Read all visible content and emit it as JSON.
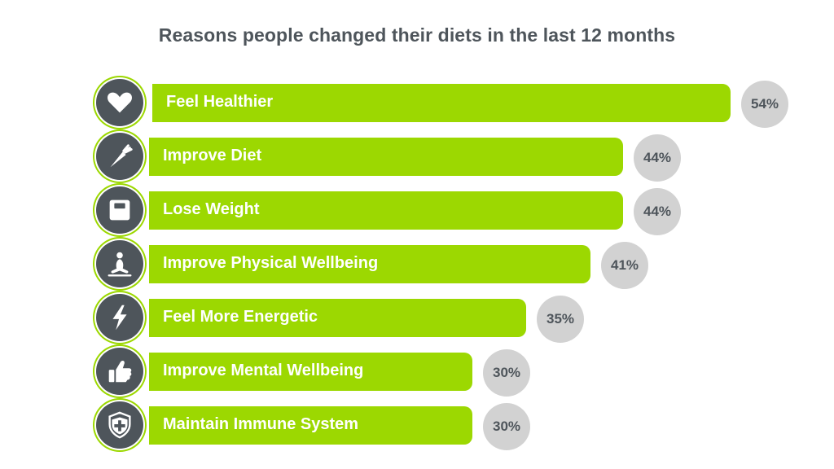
{
  "chart_data": {
    "type": "bar",
    "orientation": "horizontal",
    "title": "Reasons people changed their diets in the last 12 months",
    "categories": [
      "Feel Healthier",
      "Improve Diet",
      "Lose Weight",
      "Improve Physical Wellbeing",
      "Feel More Energetic",
      "Improve Mental Wellbeing",
      "Maintain Immune System"
    ],
    "values": [
      54,
      44,
      44,
      41,
      35,
      30,
      30
    ],
    "value_labels": [
      "54%",
      "44%",
      "44%",
      "41%",
      "35%",
      "30%",
      "30%"
    ],
    "icons": [
      "heart-icon",
      "carrot-icon",
      "scale-icon",
      "meditation-icon",
      "lightning-icon",
      "thumbs-up-icon",
      "shield-cross-icon"
    ],
    "xlim": [
      0,
      54
    ],
    "grid": false,
    "legend": "none",
    "colors": {
      "bar": "#9cd801",
      "icon_bg": "#4e555b",
      "value_badge": "#d2d2d2",
      "title": "#4e555b",
      "label": "#ffffff"
    }
  }
}
